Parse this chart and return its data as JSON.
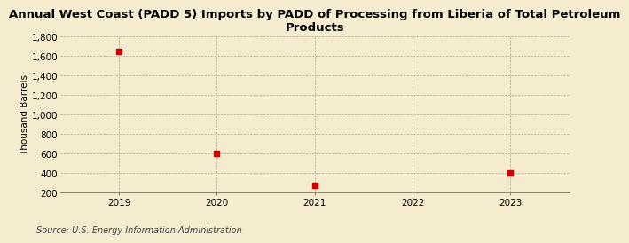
{
  "title": "Annual West Coast (PADD 5) Imports by PADD of Processing from Liberia of Total Petroleum\nProducts",
  "ylabel": "Thousand Barrels",
  "source": "Source: U.S. Energy Information Administration",
  "background_color": "#f5ecd0",
  "data_color": "#cc0000",
  "x_values": [
    2019,
    2020,
    2021,
    2023
  ],
  "y_values": [
    1651,
    603,
    275,
    399
  ],
  "xlim": [
    2018.4,
    2023.6
  ],
  "ylim": [
    200,
    1800
  ],
  "yticks": [
    200,
    400,
    600,
    800,
    1000,
    1200,
    1400,
    1600,
    1800
  ],
  "xticks": [
    2019,
    2020,
    2021,
    2022,
    2023
  ],
  "marker_size": 4,
  "title_fontsize": 9.5,
  "axis_fontsize": 7.5,
  "ylabel_fontsize": 7.5,
  "source_fontsize": 7
}
